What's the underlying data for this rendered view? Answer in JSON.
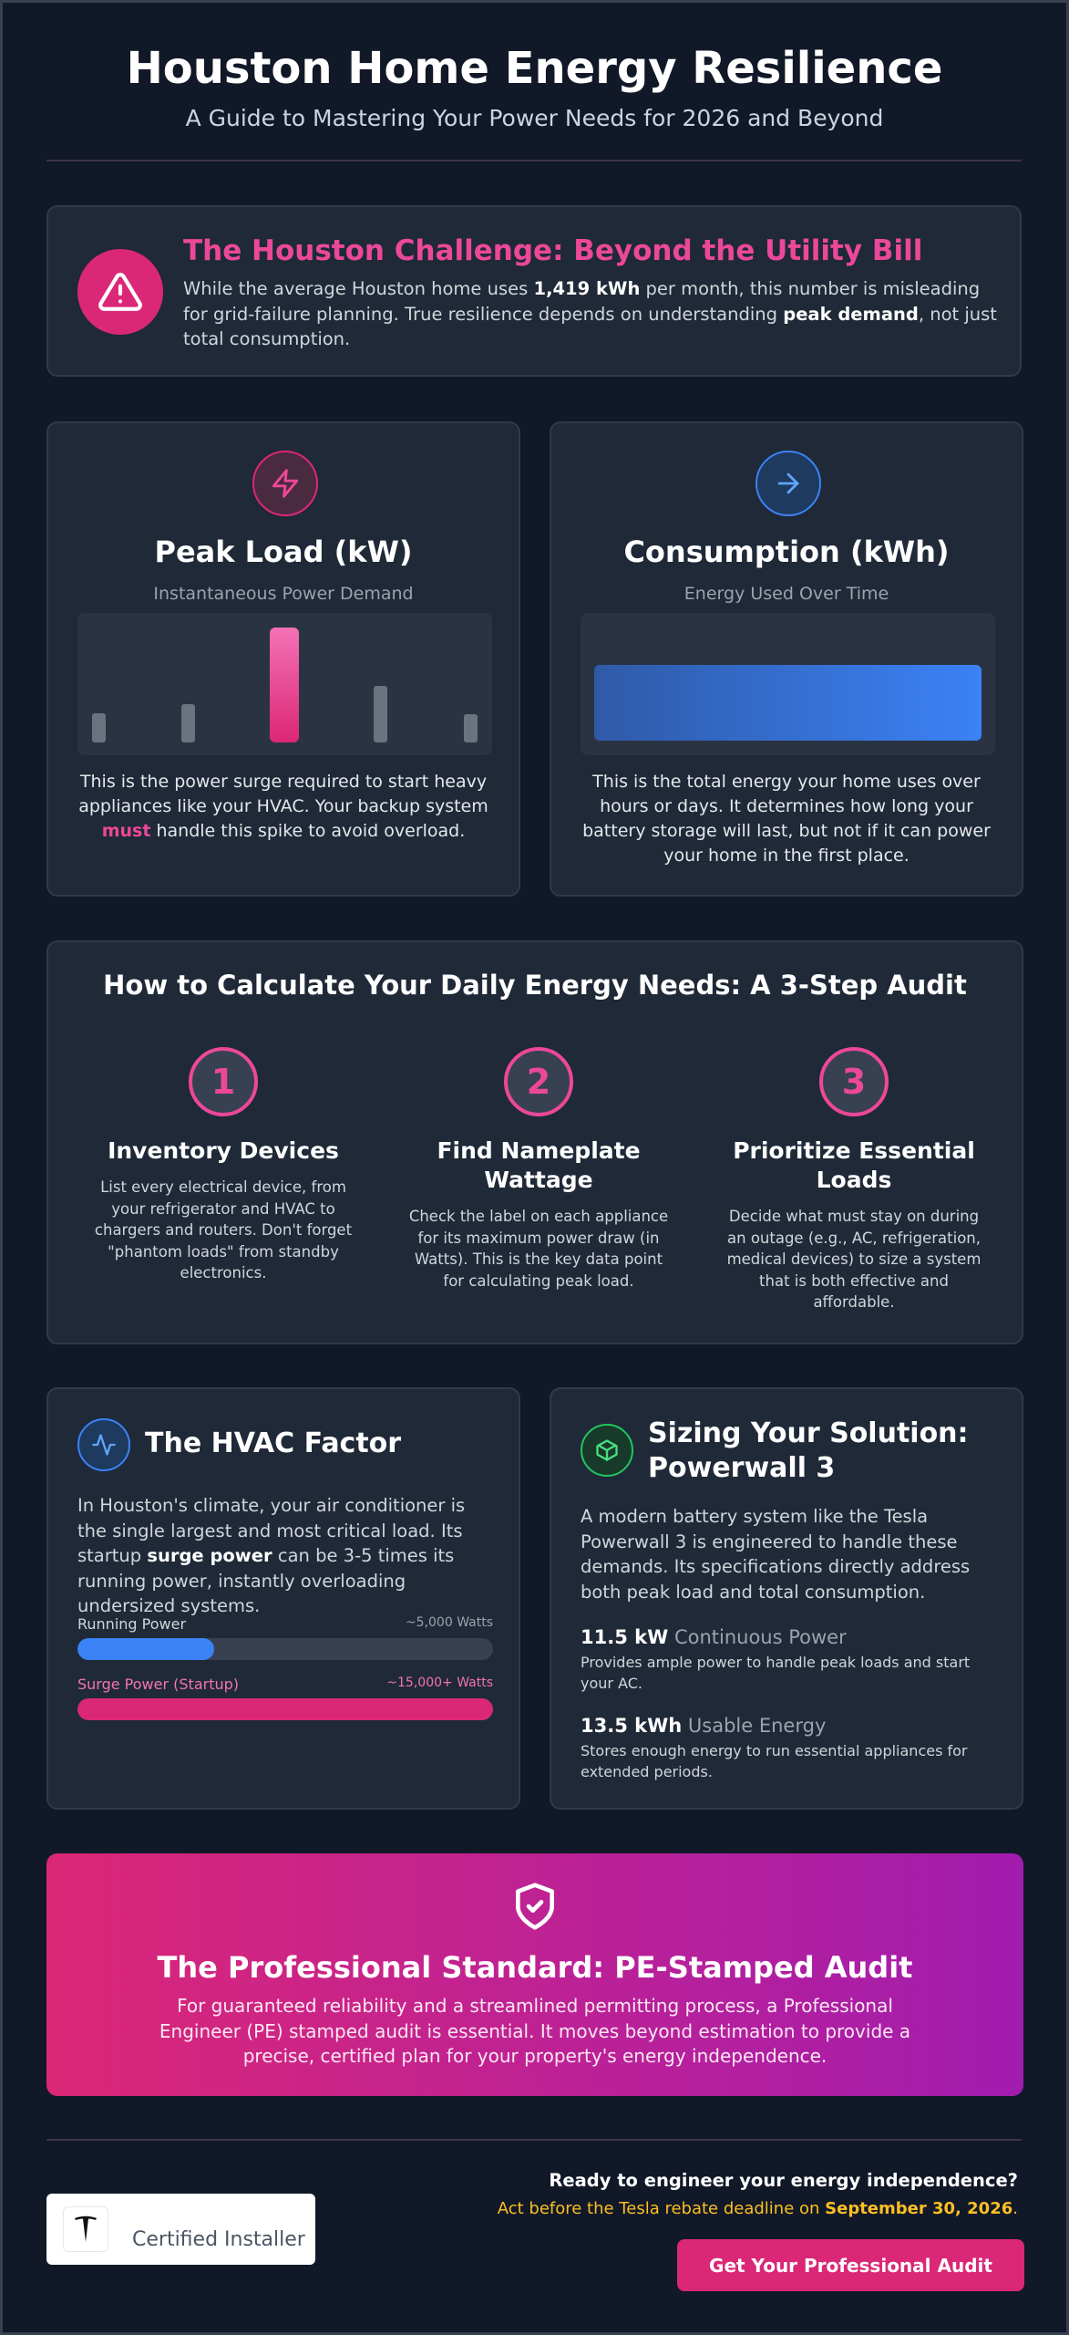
{
  "header": {
    "title": "Houston Home Energy Resilience",
    "subtitle": "A Guide to Mastering Your Power Needs for 2026 and Beyond"
  },
  "challenge": {
    "title": "The Houston Challenge: Beyond the Utility Bill",
    "text": [
      "While the average Houston home uses ",
      "1,419 kWh",
      " per month, this number is misleading for grid-failure planning. True resilience depends on understanding ",
      "peak demand",
      ", not just total consumption."
    ]
  },
  "cards": [
    {
      "title": "Peak Load (kW)",
      "subtitle": "Instantaneous Power Demand",
      "text": [
        "This is the power surge required to start heavy appliances like your HVAC. Your backup system ",
        "must",
        " handle this spike to avoid overload."
      ]
    },
    {
      "title": "Consumption (kWh)",
      "subtitle": "Energy Used Over Time",
      "text": [
        "This is the total energy your home uses over hours or days. It determines how long your battery storage will last, but not if it can power your home in the first place."
      ]
    }
  ],
  "audit": {
    "title": "How to Calculate Your Daily Energy Needs: A 3-Step Audit",
    "steps": [
      {
        "number": 1,
        "title": "Inventory Devices",
        "text": "List every electrical device, from your refrigerator and HVAC to chargers and routers. Don't forget \"phantom loads\" from standby electronics."
      },
      {
        "number": 2,
        "title": "Find Nameplate Wattage",
        "text": "Check the label on each appliance for its maximum power draw (in Watts). This is the key data point for calculating peak load."
      },
      {
        "number": 3,
        "title": "Prioritize Essential Loads",
        "text": "Decide what must stay on during an outage (e.g., AC, refrigeration, medical devices) to size a system that is both effective and affordable."
      }
    ]
  },
  "hvac": {
    "title": "The HVAC Factor",
    "text": [
      "In Houston's climate, your air conditioner is the single largest and most critical load. Its startup ",
      "surge power",
      " can be 3-5 times its running power, instantly overloading undersized systems."
    ],
    "running": {
      "label": "Running Power",
      "value": "~5,000 Watts"
    },
    "surge": {
      "label": "Surge Power (Startup)",
      "value": "~15,000+ Watts"
    }
  },
  "powerwall": {
    "title": "Sizing Your Solution: Powerwall 3",
    "text": "A modern battery system like the Tesla Powerwall 3 is engineered to handle these demands. Its specifications directly address both peak load and total consumption.",
    "specs": [
      {
        "value": "11.5 kW",
        "label": "Continuous Power",
        "text": "Provides ample power to handle peak loads and start your AC."
      },
      {
        "value": "13.5 kWh",
        "label": "Usable Energy",
        "text": "Stores enough energy to run essential appliances for extended periods."
      }
    ]
  },
  "standard": {
    "title": "The Professional Standard: PE-Stamped Audit",
    "text": "For guaranteed reliability and a streamlined permitting process, a Professional Engineer (PE) stamped audit is essential. It moves beyond estimation to provide a precise, certified plan for your property's energy independence."
  },
  "footer": {
    "badge": "Certified Installer",
    "question": "Ready to engineer your energy independence?",
    "deadline": [
      "Act before the Tesla rebate deadline on ",
      "September 30, 2026",
      "."
    ],
    "button": "Get Your Professional Audit"
  }
}
